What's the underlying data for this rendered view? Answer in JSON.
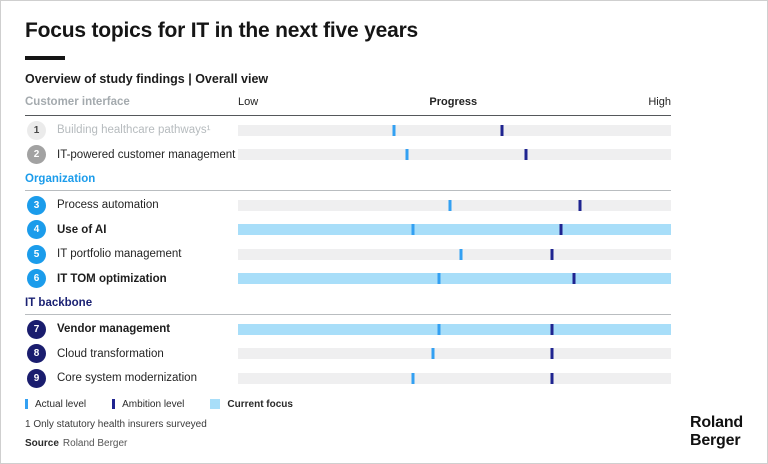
{
  "page": {
    "title": "Focus topics for IT in the next five years",
    "subtitle": "Overview of study findings | Overall view"
  },
  "axis": {
    "low": "Low",
    "progress": "Progress",
    "high": "High"
  },
  "colors": {
    "actual_tick": "#33a0f2",
    "ambition_tick": "#1f2490",
    "bar_track": "#efeff0",
    "focus_bar": "#a8def9",
    "brand_blue": "#1b9ceb",
    "brand_navy": "#1a2173"
  },
  "sections": [
    {
      "name": "Customer interface",
      "color": "#a4aaae",
      "items": [
        {
          "number": "1",
          "label": "Building healthcare pathways¹",
          "actual_pct": 36,
          "ambition_pct": 61,
          "current_focus": false,
          "bold": false,
          "circle_bg": "#ebebeb",
          "circle_fg": "#474747",
          "text_color": "#b6bbbe"
        },
        {
          "number": "2",
          "label": "IT-powered customer management",
          "actual_pct": 39,
          "ambition_pct": 66.5,
          "current_focus": false,
          "bold": false,
          "circle_bg": "#a2a2a2",
          "circle_fg": "#ffffff",
          "text_color": "#242424"
        }
      ]
    },
    {
      "name": "Organization",
      "color": "#1b9ceb",
      "items": [
        {
          "number": "3",
          "label": "Process automation",
          "actual_pct": 49,
          "ambition_pct": 79,
          "current_focus": false,
          "bold": false,
          "circle_bg": "#1b9ceb",
          "circle_fg": "#ffffff",
          "text_color": "#242424"
        },
        {
          "number": "4",
          "label": "Use of AI",
          "actual_pct": 40.5,
          "ambition_pct": 74.5,
          "current_focus": true,
          "bold": true,
          "circle_bg": "#1b9ceb",
          "circle_fg": "#ffffff",
          "text_color": "#1d1d1d"
        },
        {
          "number": "5",
          "label": "IT portfolio management",
          "actual_pct": 51.5,
          "ambition_pct": 72.5,
          "current_focus": false,
          "bold": false,
          "circle_bg": "#1b9ceb",
          "circle_fg": "#ffffff",
          "text_color": "#242424"
        },
        {
          "number": "6",
          "label": "IT TOM optimization",
          "actual_pct": 46.5,
          "ambition_pct": 77.5,
          "current_focus": true,
          "bold": true,
          "circle_bg": "#1b9ceb",
          "circle_fg": "#ffffff",
          "text_color": "#1d1d1d"
        }
      ]
    },
    {
      "name": "IT backbone",
      "color": "#1a2173",
      "items": [
        {
          "number": "7",
          "label": "Vendor management",
          "actual_pct": 46.5,
          "ambition_pct": 72.5,
          "current_focus": true,
          "bold": true,
          "circle_bg": "#1a1d6e",
          "circle_fg": "#ffffff",
          "text_color": "#1d1d1d"
        },
        {
          "number": "8",
          "label": "Cloud transformation",
          "actual_pct": 45,
          "ambition_pct": 72.5,
          "current_focus": false,
          "bold": false,
          "circle_bg": "#1a1d6e",
          "circle_fg": "#ffffff",
          "text_color": "#242424"
        },
        {
          "number": "9",
          "label": "Core system modernization",
          "actual_pct": 40.5,
          "ambition_pct": 72.5,
          "current_focus": false,
          "bold": false,
          "circle_bg": "#1a1d6e",
          "circle_fg": "#ffffff",
          "text_color": "#242424"
        }
      ]
    }
  ],
  "legend": {
    "actual_label": "Actual level",
    "ambition_label": "Ambition level",
    "focus_label": "Current focus"
  },
  "footnote": "1 Only statutory health insurers surveyed",
  "source_label": "Source",
  "source_value": "Roland Berger",
  "logo": {
    "line1": "Roland",
    "line2": "Berger"
  },
  "chart_data": {
    "type": "scatter",
    "title": "Focus topics for IT in the next five years",
    "subtitle": "Overview of study findings | Overall view",
    "xlabel": "Progress",
    "x_axis_labels": [
      "Low",
      "Progress",
      "High"
    ],
    "xlim": [
      0,
      100
    ],
    "grid": false,
    "legend_position": "bottom",
    "categories": [
      "Building healthcare pathways¹",
      "IT-powered customer management",
      "Process automation",
      "Use of AI",
      "IT portfolio management",
      "IT TOM optimization",
      "Vendor management",
      "Cloud transformation",
      "Core system modernization"
    ],
    "groups": [
      "Customer interface",
      "Customer interface",
      "Organization",
      "Organization",
      "Organization",
      "Organization",
      "IT backbone",
      "IT backbone",
      "IT backbone"
    ],
    "series": [
      {
        "name": "Actual level",
        "values": [
          36,
          39,
          49,
          40.5,
          51.5,
          46.5,
          46.5,
          45,
          40.5
        ]
      },
      {
        "name": "Ambition level",
        "values": [
          61,
          66.5,
          79,
          74.5,
          72.5,
          77.5,
          72.5,
          72.5,
          72.5
        ]
      }
    ],
    "current_focus": [
      "Use of AI",
      "IT TOM optimization",
      "Vendor management"
    ]
  }
}
